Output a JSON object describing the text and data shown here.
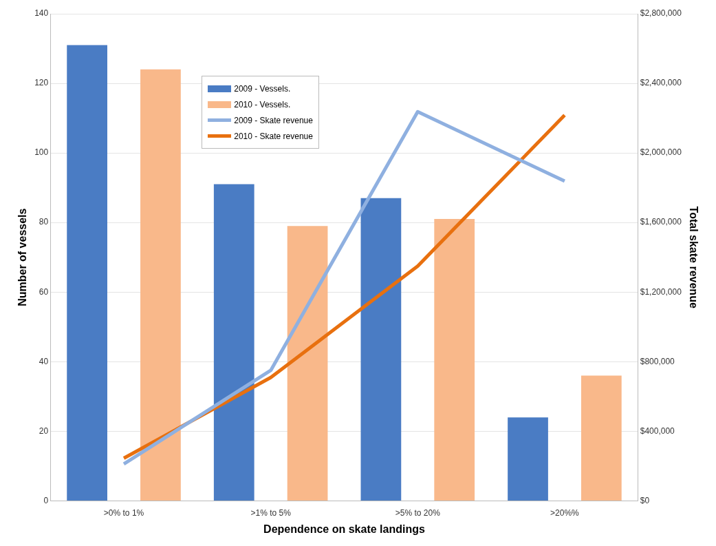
{
  "chart_data": {
    "type": "bar",
    "xlabel": "Dependence on skate landings",
    "ylabel": "Number of vessels",
    "y2label": "Total skate revenue",
    "categories": [
      ">0% to 1%",
      ">1% to 5%",
      ">5% to 20%",
      ">20%%"
    ],
    "series": [
      {
        "name": "2009 - Vessels.",
        "color": "#4a7cc4",
        "values": [
          131,
          91,
          87,
          24
        ]
      },
      {
        "name": "2010 - Vessels.",
        "color": "#f9b88a",
        "values": [
          124,
          79,
          81,
          36
        ]
      },
      {
        "name": "2009 - Skate revenue",
        "type": "line",
        "axis": "y2",
        "color": "#8fb0e0",
        "values": [
          212000,
          750000,
          2237000,
          1838000
        ]
      },
      {
        "name": "2010 - Skate revenue",
        "type": "line",
        "axis": "y2",
        "color": "#e8700f",
        "values": [
          245000,
          709000,
          1349000,
          2217000
        ]
      }
    ],
    "ylim": [
      0,
      140
    ],
    "yticks": [
      0,
      20,
      40,
      60,
      80,
      100,
      120,
      140
    ],
    "y2lim": [
      0,
      2800000
    ],
    "y2ticks": [
      {
        "value": 0,
        "label": "$0"
      },
      {
        "value": 400000,
        "label": "$400,000"
      },
      {
        "value": 800000,
        "label": "$800,000"
      },
      {
        "value": 1200000,
        "label": "$1,200,000"
      },
      {
        "value": 1600000,
        "label": "$1,600,000"
      },
      {
        "value": 2000000,
        "label": "$2,000,000"
      },
      {
        "value": 2400000,
        "label": "$2,400,000"
      },
      {
        "value": 2800000,
        "label": "$2,800,000"
      }
    ],
    "grid": "y",
    "legend": "top left",
    "marker": "none",
    "line_style": "solid"
  }
}
